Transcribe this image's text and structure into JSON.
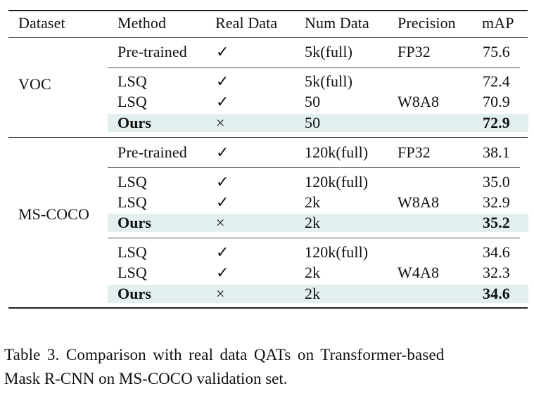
{
  "table": {
    "headers": [
      "Dataset",
      "Method",
      "Real Data",
      "Num Data",
      "Precision",
      "mAP"
    ],
    "groups": [
      {
        "dataset": "VOC",
        "rows": [
          {
            "method": "Pre-trained",
            "real": "✓",
            "num": "5k(full)",
            "precision": "FP32",
            "map": "75.6"
          },
          {
            "method": "LSQ",
            "real": "✓",
            "num": "5k(full)",
            "precision": "",
            "map": "72.4"
          },
          {
            "method": "LSQ",
            "real": "✓",
            "num": "50",
            "precision": "W8A8",
            "map": "70.9"
          },
          {
            "method": "Ours",
            "real": "×",
            "num": "50",
            "precision": "",
            "map": "72.9"
          }
        ]
      },
      {
        "dataset": "MS-COCO",
        "rows": [
          {
            "method": "Pre-trained",
            "real": "✓",
            "num": "120k(full)",
            "precision": "FP32",
            "map": "38.1"
          },
          {
            "method": "LSQ",
            "real": "✓",
            "num": "120k(full)",
            "precision": "",
            "map": "35.0"
          },
          {
            "method": "LSQ",
            "real": "✓",
            "num": "2k",
            "precision": "W8A8",
            "map": "32.9"
          },
          {
            "method": "Ours",
            "real": "×",
            "num": "2k",
            "precision": "",
            "map": "35.2"
          },
          {
            "method": "LSQ",
            "real": "✓",
            "num": "120k(full)",
            "precision": "",
            "map": "34.6"
          },
          {
            "method": "LSQ",
            "real": "✓",
            "num": "2k",
            "precision": "W4A8",
            "map": "32.3"
          },
          {
            "method": "Ours",
            "real": "×",
            "num": "2k",
            "precision": "",
            "map": "34.6"
          }
        ]
      }
    ]
  },
  "caption": {
    "line1": "Table 3. Comparison with real data QATs on Transformer-based",
    "line2": "Mask R-CNN on MS-COCO validation set."
  },
  "colors": {
    "highlight": "#e3efef",
    "rule": "#222222"
  }
}
